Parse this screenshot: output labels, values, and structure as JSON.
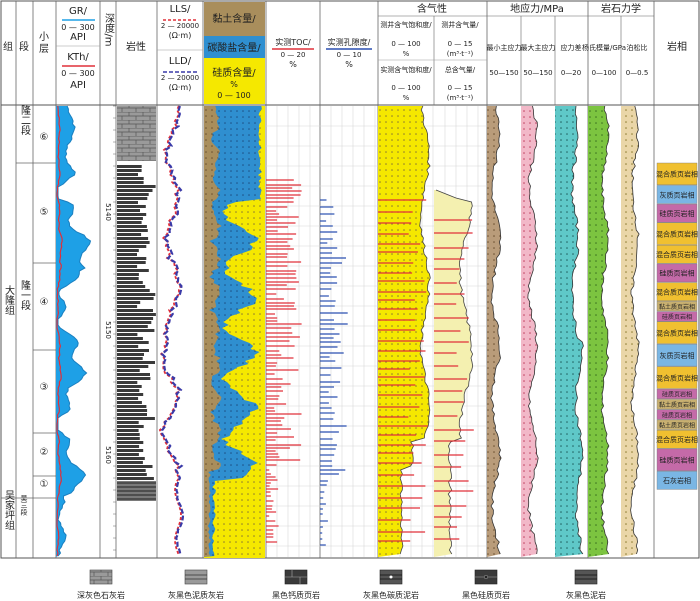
{
  "headers": {
    "group": "组",
    "section": "段",
    "sublayer": "小层",
    "gr": "GR/",
    "gr_unit": "API",
    "gr_scale": "0 — 300",
    "kth": "KTh/",
    "kth_unit": "API",
    "kth_scale": "0 — 300",
    "depth": "深度/m",
    "lithology": "岩性",
    "lls": "LLS/",
    "lls_scale": "2 — 20000",
    "lls_unit": "(Ω·m)",
    "lld": "LLD/",
    "lld_scale": "2 — 20000",
    "lld_unit": "(Ω·m)",
    "clay": "黏土含量/",
    "carbonate": "碳酸盐含量/",
    "silica": "硅质含量/",
    "silica_unit": "%",
    "silica_scale": "0 — 100",
    "toc": "实测TOC/",
    "toc_scale": "0 — 20",
    "toc_unit": "%",
    "porosity": "实测孔隙度/",
    "porosity_scale": "0 — 10",
    "porosity_unit": "%",
    "gas": "含气性",
    "gas_sat_log": "测井含气饱和度/",
    "gas_sat_log_scale": "0 — 100",
    "gas_sat_log_unit": "%",
    "gas_sat_meas": "实测含气饱和度/",
    "gas_sat_meas_scale": "0 — 100",
    "gas_sat_meas_unit": "%",
    "gas_log": "测井含气量/",
    "gas_log_scale": "0 — 15",
    "gas_log_unit": "(m³·t⁻¹)",
    "gas_total": "总含气量/",
    "gas_total_scale": "0 — 15",
    "gas_total_unit": "(m³·t⁻¹)",
    "stress": "地应力/MPa",
    "min_stress": "最小主应力",
    "min_stress_scale": "50—150",
    "max_stress": "最大主应力",
    "max_stress_scale": "50—150",
    "stress_diff": "应力差",
    "stress_diff_scale": "0—20",
    "rock_mech": "岩石力学",
    "youngs": "杨氏模量/GPa",
    "youngs_scale": "0—100",
    "poisson": "泊松比",
    "poisson_scale": "0—0.5",
    "facies": "岩相"
  },
  "strat": {
    "group1": "大隆组",
    "group2": "吴家坪组",
    "section1": "隆二段",
    "section2": "隆一段",
    "section3": "吴三段",
    "layers": [
      "⑥",
      "⑤",
      "④",
      "③",
      "②",
      "①"
    ]
  },
  "depth_ticks": [
    "5140",
    "5150",
    "5160"
  ],
  "facies": [
    "混合质页岩相",
    "灰质页岩相",
    "硅质页岩相",
    "混合质页岩相",
    "混合质页岩相",
    "硅质页岩相",
    "混合质页岩相",
    "黏土质页岩相",
    "硅质页岩相",
    "混合质页岩相",
    "灰质页岩相",
    "混合质页岩相",
    "硅质页岩相",
    "黏土质页岩相",
    "硅质页岩相",
    "黏土质页岩相",
    "混合质页岩相",
    "硅质页岩相",
    "石灰岩相"
  ],
  "legend": [
    "深灰色石灰岩",
    "灰黑色泥质灰岩",
    "黑色钙质页岩",
    "灰黑色碳质泥岩",
    "黑色硅质页岩",
    "灰黑色泥岩"
  ],
  "colors": {
    "gr": "#1ea0e6",
    "kth": "#e0303a",
    "lls": "#e0303a",
    "lld": "#3a3aa8",
    "clay": "#a98e5c",
    "carbonate": "#2f8fd0",
    "silica": "#f5e800",
    "toc": "#e0303a",
    "porosity": "#2a4fb0",
    "gas_sat": "#f5e800",
    "gas_vol": "#f4f0b0",
    "min_stress": "#b99c7a",
    "max_stress": "#f2b8c8",
    "stress_diff": "#5fc8c8",
    "youngs": "#7cc440",
    "poisson": "#ead6a8",
    "facies_mixed": "#f0c030",
    "facies_calc": "#7ab6e4",
    "facies_sil": "#c46aa8",
    "facies_clay": "#c8b070",
    "facies_lime": "#7ab6e4"
  }
}
